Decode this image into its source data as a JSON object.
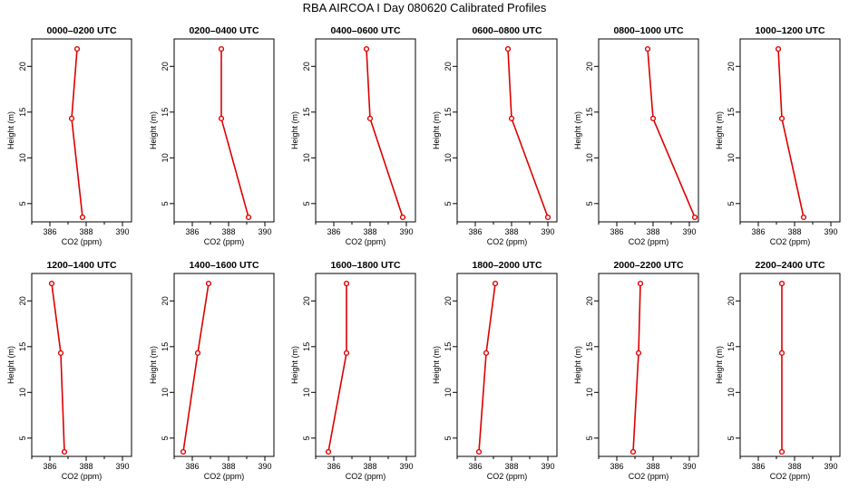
{
  "chart_data": {
    "type": "line",
    "title": "RBA AIRCOA I  Day 080620  Calibrated Profiles",
    "xlabel": "CO2 (ppm)",
    "ylabel": "Height (m)",
    "xlim": [
      385,
      390.5
    ],
    "ylim": [
      3,
      23
    ],
    "xticks": [
      386,
      388,
      390
    ],
    "yticks": [
      5,
      10,
      15,
      20
    ],
    "series_color": "#dd0000",
    "panels": [
      {
        "name": "0000–0200 UTC",
        "points": [
          {
            "co2": 387.8,
            "height": 3.5
          },
          {
            "co2": 387.2,
            "height": 14.3
          },
          {
            "co2": 387.5,
            "height": 21.9
          }
        ]
      },
      {
        "name": "0200–0400 UTC",
        "points": [
          {
            "co2": 389.1,
            "height": 3.5
          },
          {
            "co2": 387.6,
            "height": 14.3
          },
          {
            "co2": 387.6,
            "height": 21.9
          }
        ]
      },
      {
        "name": "0400–0600 UTC",
        "points": [
          {
            "co2": 389.8,
            "height": 3.5
          },
          {
            "co2": 388.0,
            "height": 14.3
          },
          {
            "co2": 387.8,
            "height": 21.9
          }
        ]
      },
      {
        "name": "0600–0800 UTC",
        "points": [
          {
            "co2": 390.0,
            "height": 3.5
          },
          {
            "co2": 388.0,
            "height": 14.3
          },
          {
            "co2": 387.8,
            "height": 21.9
          }
        ]
      },
      {
        "name": "0800–1000 UTC",
        "points": [
          {
            "co2": 390.3,
            "height": 3.5
          },
          {
            "co2": 388.0,
            "height": 14.3
          },
          {
            "co2": 387.7,
            "height": 21.9
          }
        ]
      },
      {
        "name": "1000–1200 UTC",
        "points": [
          {
            "co2": 388.5,
            "height": 3.5
          },
          {
            "co2": 387.3,
            "height": 14.3
          },
          {
            "co2": 387.1,
            "height": 21.9
          }
        ]
      },
      {
        "name": "1200–1400 UTC",
        "points": [
          {
            "co2": 386.8,
            "height": 3.5
          },
          {
            "co2": 386.6,
            "height": 14.3
          },
          {
            "co2": 386.1,
            "height": 21.9
          }
        ]
      },
      {
        "name": "1400–1600 UTC",
        "points": [
          {
            "co2": 385.5,
            "height": 3.5
          },
          {
            "co2": 386.3,
            "height": 14.3
          },
          {
            "co2": 386.9,
            "height": 21.9
          }
        ]
      },
      {
        "name": "1600–1800 UTC",
        "points": [
          {
            "co2": 385.7,
            "height": 3.5
          },
          {
            "co2": 386.7,
            "height": 14.3
          },
          {
            "co2": 386.7,
            "height": 21.9
          }
        ]
      },
      {
        "name": "1800–2000 UTC",
        "points": [
          {
            "co2": 386.2,
            "height": 3.5
          },
          {
            "co2": 386.6,
            "height": 14.3
          },
          {
            "co2": 387.1,
            "height": 21.9
          }
        ]
      },
      {
        "name": "2000–2200 UTC",
        "points": [
          {
            "co2": 386.9,
            "height": 3.5
          },
          {
            "co2": 387.2,
            "height": 14.3
          },
          {
            "co2": 387.3,
            "height": 21.9
          }
        ]
      },
      {
        "name": "2200–2400 UTC",
        "points": [
          {
            "co2": 387.3,
            "height": 3.5
          },
          {
            "co2": 387.3,
            "height": 14.3
          },
          {
            "co2": 387.3,
            "height": 21.9
          }
        ]
      }
    ]
  }
}
